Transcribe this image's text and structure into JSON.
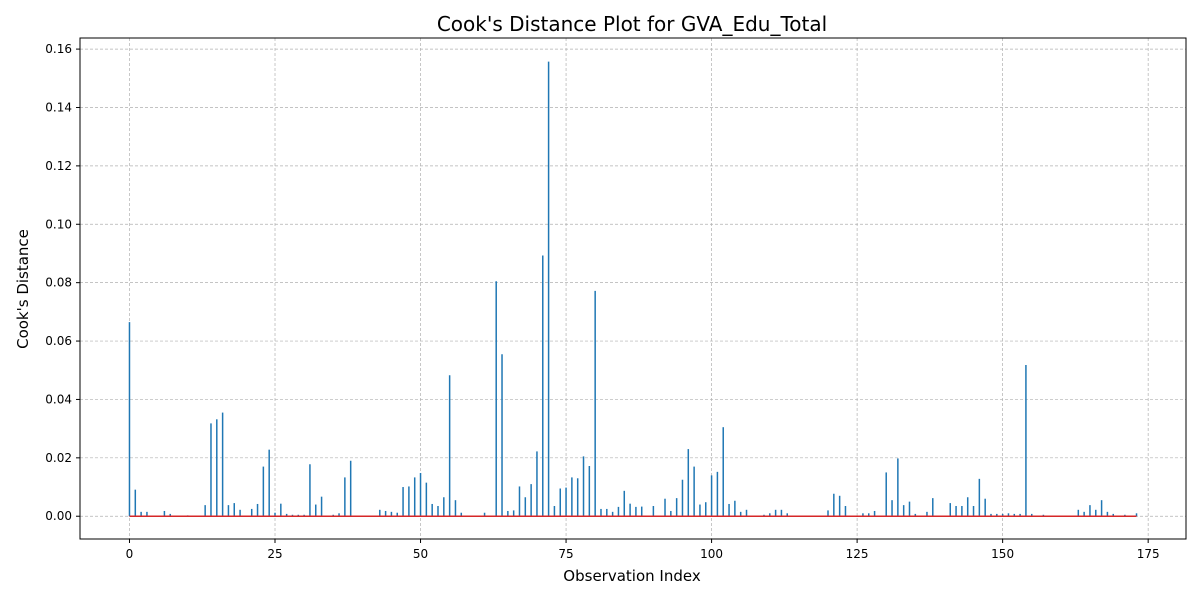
{
  "chart_data": {
    "type": "stem",
    "title": "Cook's Distance Plot for GVA_Edu_Total",
    "xlabel": "Observation Index",
    "ylabel": "Cook's Distance",
    "xlim": [
      -8.5,
      181.5
    ],
    "ylim": [
      -0.0078,
      0.1638
    ],
    "xticks": [
      0,
      25,
      50,
      75,
      100,
      125,
      150,
      175
    ],
    "xtick_labels": [
      "0",
      "25",
      "50",
      "75",
      "100",
      "125",
      "150",
      "175"
    ],
    "yticks": [
      0.0,
      0.02,
      0.04,
      0.06,
      0.08,
      0.1,
      0.12,
      0.14,
      0.16
    ],
    "ytick_labels": [
      "0.00",
      "0.02",
      "0.04",
      "0.06",
      "0.08",
      "0.10",
      "0.12",
      "0.14",
      "0.16"
    ],
    "grid": true,
    "stem_color": "#1f77b4",
    "baseline_color": "#d62728",
    "x": [
      0,
      1,
      2,
      3,
      4,
      5,
      6,
      7,
      8,
      9,
      10,
      11,
      12,
      13,
      14,
      15,
      16,
      17,
      18,
      19,
      20,
      21,
      22,
      23,
      24,
      25,
      26,
      27,
      28,
      29,
      30,
      31,
      32,
      33,
      34,
      35,
      36,
      37,
      38,
      39,
      40,
      41,
      42,
      43,
      44,
      45,
      46,
      47,
      48,
      49,
      50,
      51,
      52,
      53,
      54,
      55,
      56,
      57,
      58,
      59,
      60,
      61,
      62,
      63,
      64,
      65,
      66,
      67,
      68,
      69,
      70,
      71,
      72,
      73,
      74,
      75,
      76,
      77,
      78,
      79,
      80,
      81,
      82,
      83,
      84,
      85,
      86,
      87,
      88,
      89,
      90,
      91,
      92,
      93,
      94,
      95,
      96,
      97,
      98,
      99,
      100,
      101,
      102,
      103,
      104,
      105,
      106,
      107,
      108,
      109,
      110,
      111,
      112,
      113,
      114,
      115,
      116,
      117,
      118,
      119,
      120,
      121,
      122,
      123,
      124,
      125,
      126,
      127,
      128,
      129,
      130,
      131,
      132,
      133,
      134,
      135,
      136,
      137,
      138,
      139,
      140,
      141,
      142,
      143,
      144,
      145,
      146,
      147,
      148,
      149,
      150,
      151,
      152,
      153,
      154,
      155,
      156,
      157,
      158,
      159,
      160,
      161,
      162,
      163,
      164,
      165,
      166,
      167,
      168,
      169,
      170,
      171,
      172,
      173
    ],
    "values": [
      0.0665,
      0.0091,
      0.0015,
      0.0015,
      0.0002,
      0.0002,
      0.0018,
      0.0008,
      0.0002,
      0.0002,
      0.0003,
      0.0002,
      0.0002,
      0.0038,
      0.0318,
      0.0332,
      0.0355,
      0.0038,
      0.0045,
      0.0022,
      0.0002,
      0.0025,
      0.0042,
      0.017,
      0.0228,
      0.0012,
      0.0043,
      0.0008,
      0.0005,
      0.0005,
      0.0005,
      0.0178,
      0.004,
      0.0067,
      0.0002,
      0.0005,
      0.001,
      0.0133,
      0.019,
      0.0002,
      0.0002,
      0.0002,
      0.0002,
      0.0022,
      0.0018,
      0.0015,
      0.0012,
      0.01,
      0.0102,
      0.0133,
      0.0148,
      0.0115,
      0.0042,
      0.0035,
      0.0065,
      0.0483,
      0.0055,
      0.0012,
      0.0002,
      0.0002,
      0.0002,
      0.0012,
      0.0002,
      0.0805,
      0.0555,
      0.0018,
      0.002,
      0.0102,
      0.0065,
      0.011,
      0.0222,
      0.0893,
      0.1557,
      0.0035,
      0.0095,
      0.0098,
      0.0133,
      0.013,
      0.0205,
      0.0172,
      0.0772,
      0.0025,
      0.0025,
      0.0015,
      0.0032,
      0.0087,
      0.0043,
      0.0032,
      0.0033,
      0.0002,
      0.0035,
      0.0002,
      0.006,
      0.0018,
      0.0062,
      0.0125,
      0.023,
      0.017,
      0.004,
      0.0048,
      0.014,
      0.0152,
      0.0305,
      0.0042,
      0.0053,
      0.0015,
      0.0022,
      0.0002,
      0.0002,
      0.0005,
      0.001,
      0.0022,
      0.0022,
      0.001,
      0.0002,
      0.0002,
      0.0002,
      0.0002,
      0.0002,
      0.0002,
      0.002,
      0.0077,
      0.007,
      0.0035,
      0.0002,
      0.0002,
      0.001,
      0.001,
      0.0018,
      0.0002,
      0.015,
      0.0055,
      0.0198,
      0.0038,
      0.005,
      0.0008,
      0.0002,
      0.0015,
      0.0062,
      0.0002,
      0.0002,
      0.0045,
      0.0035,
      0.0035,
      0.0065,
      0.0035,
      0.0128,
      0.006,
      0.0008,
      0.0008,
      0.0008,
      0.001,
      0.0008,
      0.0008,
      0.0518,
      0.0008,
      0.0002,
      0.0005,
      0.0002,
      0.0002,
      0.0002,
      0.0002,
      0.0002,
      0.0022,
      0.0015,
      0.0038,
      0.0022,
      0.0055,
      0.0015,
      0.0008,
      0.0002,
      0.0005,
      0.0002,
      0.001
    ]
  }
}
